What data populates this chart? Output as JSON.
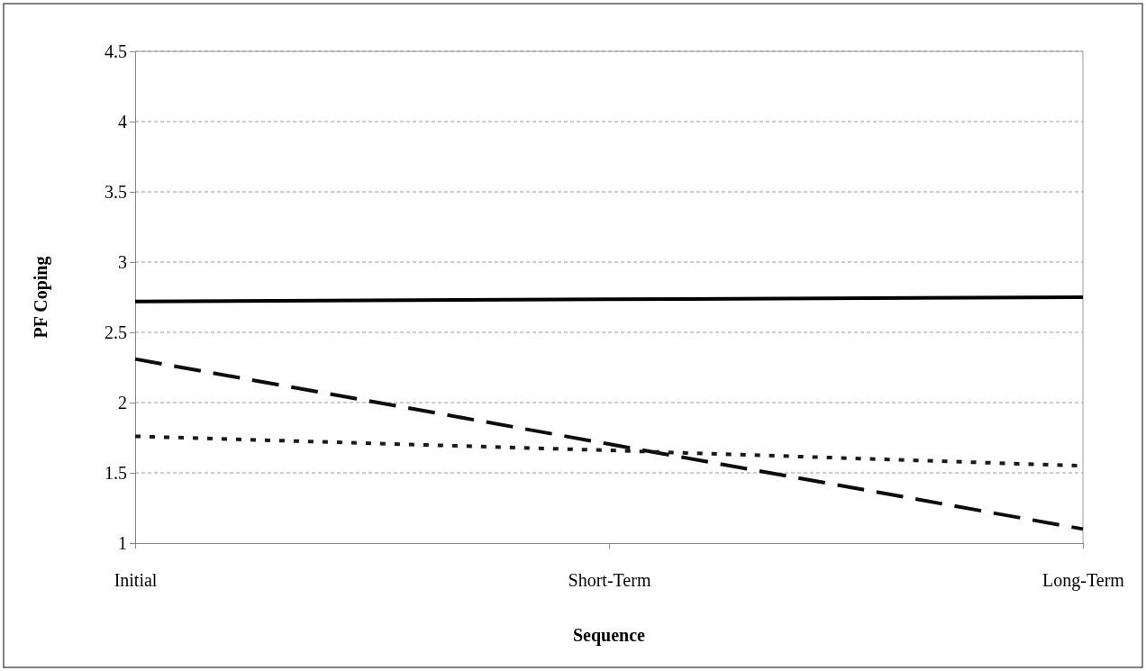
{
  "chart_data": {
    "type": "line",
    "xlabel": "Sequence",
    "ylabel": "PF Coping",
    "categories": [
      "Initial",
      "Short-Term",
      "Long-Term"
    ],
    "series": [
      {
        "color": "#000000",
        "line_style": "solid",
        "values": [
          2.72,
          2.735,
          2.75
        ]
      },
      {
        "color": "#0d0d0d",
        "line_style": "dashed",
        "values": [
          2.31,
          1.705,
          1.1
        ]
      },
      {
        "color": "#1a1a1a",
        "line_style": "dotted",
        "values": [
          1.76,
          1.66,
          1.55
        ]
      }
    ],
    "ylim": [
      1,
      4.5
    ],
    "yticks": [
      1,
      1.5,
      2,
      2.5,
      3,
      3.5,
      4,
      4.5
    ],
    "grid": "y",
    "marker": "none"
  }
}
